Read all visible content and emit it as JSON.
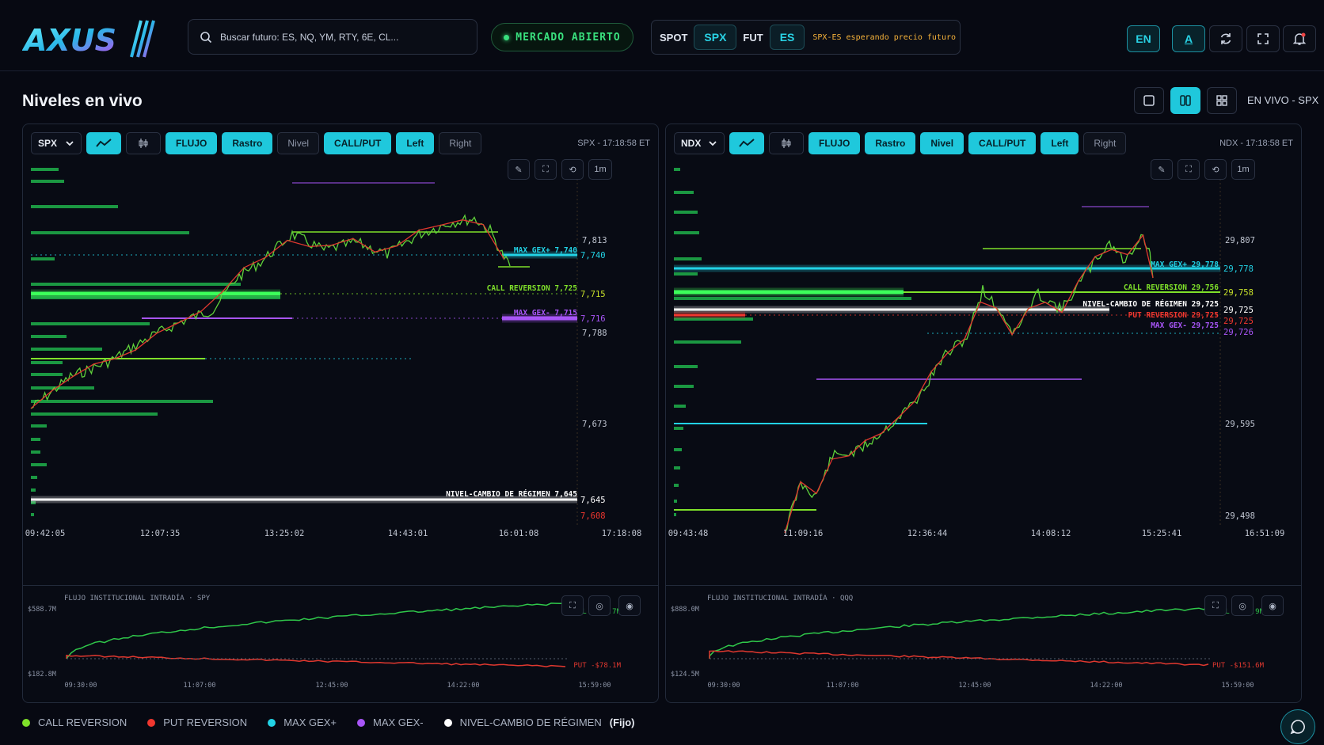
{
  "header": {
    "logo_text": "AXUS",
    "search_placeholder": "Buscar futuro: ES, NQ, YM, RTY, 6E, CL...",
    "market_status": "MERCADO ABIERTO",
    "pair": {
      "spot_label": "SPOT",
      "spot_value": "SPX",
      "fut_label": "FUT",
      "fut_value": "ES",
      "status": "SPX-ES esperando precio futuro"
    },
    "lang": "EN",
    "font_btn": "A"
  },
  "page": {
    "title": "Niveles en vivo",
    "live_label": "EN VIVO - SPX"
  },
  "colors": {
    "call_reversion": "#7fe02a",
    "put_reversion": "#f0372f",
    "max_gex_plus": "#22d3e6",
    "max_gex_minus": "#a855f7",
    "regime": "#ffffff",
    "accent": "#1fc8dc"
  },
  "panels": [
    {
      "symbol": "SPX",
      "buttons": [
        {
          "label": "FLUJO",
          "active": true
        },
        {
          "label": "Rastro",
          "active": true
        },
        {
          "label": "Nivel",
          "active": false
        },
        {
          "label": "CALL/PUT",
          "active": true
        },
        {
          "label": "Left",
          "active": true
        },
        {
          "label": "Right",
          "active": false
        }
      ],
      "time_label": "SPX - 17:18:58 ET",
      "interval": "1m",
      "y_ticks": [
        "7,813",
        "7,788",
        "7,673"
      ],
      "price_tags": [
        "7,740",
        "7,715",
        "7,716",
        "7,645",
        "7,608"
      ],
      "level_labels": [
        "MAX GEX+ 7,740",
        "CALL REVERSION 7,725",
        "MAX GEX- 7,715",
        "NIVEL-CAMBIO DE RÉGIMEN 7,645"
      ],
      "x_ticks": [
        "09:42:05",
        "12:07:35",
        "13:25:02",
        "14:43:01",
        "16:01:08",
        "17:18:08"
      ],
      "flow": {
        "title": "FLUJO INSTITUCIONAL INTRADÍA · SPY",
        "y_top": "$588.7M",
        "y_bottom": "$182.8M",
        "call_label": "CALL $866.7M",
        "put_label": "PUT -$78.1M",
        "x_ticks": [
          "09:30:00",
          "11:07:00",
          "12:45:00",
          "14:22:00",
          "15:59:00"
        ]
      }
    },
    {
      "symbol": "NDX",
      "buttons": [
        {
          "label": "FLUJO",
          "active": true
        },
        {
          "label": "Rastro",
          "active": true
        },
        {
          "label": "Nivel",
          "active": true
        },
        {
          "label": "CALL/PUT",
          "active": true
        },
        {
          "label": "Left",
          "active": true
        },
        {
          "label": "Right",
          "active": false
        }
      ],
      "time_label": "NDX - 17:18:58 ET",
      "interval": "1m",
      "y_ticks": [
        "29,807",
        "29,595",
        "29,498"
      ],
      "price_tags": [
        "29,778",
        "29,758",
        "29,725",
        "29,725",
        "29,726"
      ],
      "level_labels": [
        "MAX GEX+ 29,778",
        "CALL REVERSION 29,756",
        "NIVEL-CAMBIO DE RÉGIMEN 29,725",
        "PUT REVERSION 29,725",
        "MAX GEX- 29,725"
      ],
      "x_ticks": [
        "09:43:48",
        "11:09:16",
        "12:36:44",
        "14:08:12",
        "15:25:41",
        "16:51:09"
      ],
      "flow": {
        "title": "FLUJO INSTITUCIONAL INTRADÍA · QQQ",
        "y_top": "$888.0M",
        "y_bottom": "$124.5M",
        "call_label": "CALL $646.9M",
        "put_label": "PUT -$151.6M",
        "x_ticks": [
          "09:30:00",
          "11:07:00",
          "12:45:00",
          "14:22:00",
          "15:59:00"
        ]
      }
    }
  ],
  "legend": [
    {
      "label": "CALL REVERSION",
      "color": "#7fe02a"
    },
    {
      "label": "PUT REVERSION",
      "color": "#f0372f"
    },
    {
      "label": "MAX GEX+",
      "color": "#22d3e6"
    },
    {
      "label": "MAX GEX-",
      "color": "#a855f7"
    },
    {
      "label": "NIVEL-CAMBIO DE RÉGIMEN",
      "color": "#ffffff",
      "suffix": "(Fijo)"
    }
  ]
}
